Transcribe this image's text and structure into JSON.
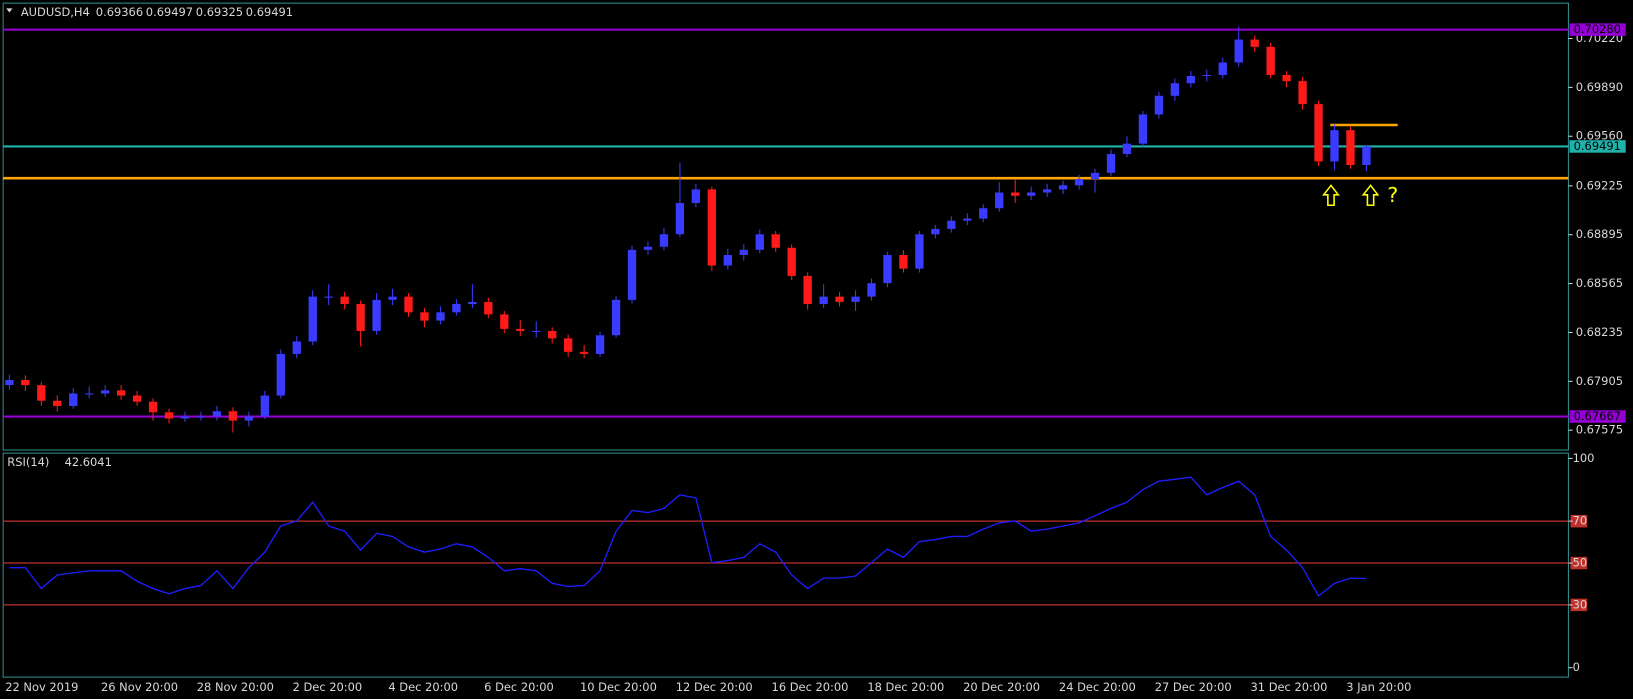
{
  "chart_data": [
    {
      "type": "candlestick",
      "title": "AUDUSD,H4",
      "header_values": [
        0.69366,
        0.69497,
        0.69325,
        0.69491
      ],
      "categories": [
        "22 Nov 2019",
        null,
        null,
        null,
        null,
        null,
        "26 Nov 20:00",
        null,
        null,
        null,
        null,
        null,
        "28 Nov 20:00",
        null,
        null,
        null,
        null,
        null,
        "2 Dec 20:00",
        null,
        null,
        null,
        null,
        null,
        "4 Dec 20:00",
        null,
        null,
        null,
        null,
        null,
        "6 Dec 20:00",
        null,
        null,
        null,
        null,
        null,
        "10 Dec 20:00",
        null,
        null,
        null,
        null,
        null,
        "12 Dec 20:00",
        null,
        null,
        null,
        null,
        null,
        "16 Dec 20:00",
        null,
        null,
        null,
        null,
        null,
        "18 Dec 20:00",
        null,
        null,
        null,
        null,
        null,
        "20 Dec 20:00",
        null,
        null,
        null,
        null,
        null,
        "24 Dec 20:00",
        null,
        null,
        null,
        null,
        null,
        "27 Dec 20:00",
        null,
        null,
        null,
        null,
        null,
        "31 Dec 20:00",
        null,
        null,
        null,
        null,
        null,
        "3 Jan 20:00",
        null
      ],
      "open": [
        0.6788,
        0.67914,
        0.67879,
        0.67774,
        0.67738,
        0.67823,
        0.67823,
        0.67844,
        0.67809,
        0.67767,
        0.67696,
        0.67654,
        0.67668,
        0.67668,
        0.67703,
        0.6764,
        0.67668,
        0.67809,
        0.6809,
        0.68174,
        0.68477,
        0.68477,
        0.68427,
        0.68245,
        0.68455,
        0.68477,
        0.68371,
        0.68315,
        0.68371,
        0.68427,
        0.68441,
        0.68357,
        0.68259,
        0.68245,
        0.68245,
        0.68195,
        0.68104,
        0.6809,
        0.68216,
        0.68455,
        0.68793,
        0.68814,
        0.68898,
        0.69109,
        0.69201,
        0.68687,
        0.68758,
        0.68793,
        0.68898,
        0.68807,
        0.68617,
        0.68427,
        0.68477,
        0.68441,
        0.68477,
        0.68568,
        0.68758,
        0.68666,
        0.68898,
        0.68934,
        0.6899,
        0.69004,
        0.69074,
        0.6918,
        0.69158,
        0.6918,
        0.69201,
        0.69229,
        0.69271,
        0.69313,
        0.6944,
        0.6951,
        0.69707,
        0.69833,
        0.69918,
        0.69967,
        0.69974,
        0.70058,
        0.70213,
        0.70164,
        0.69974,
        0.69932,
        0.69777,
        0.6939,
        0.69601,
        0.69366
      ],
      "high": [
        0.6795,
        0.67945,
        0.679,
        0.6781,
        0.6786,
        0.6787,
        0.6788,
        0.6788,
        0.6784,
        0.6779,
        0.6772,
        0.677,
        0.677,
        0.6774,
        0.6773,
        0.677,
        0.6784,
        0.6812,
        0.6821,
        0.6852,
        0.6856,
        0.6851,
        0.6845,
        0.685,
        0.6853,
        0.685,
        0.684,
        0.6841,
        0.6846,
        0.6856,
        0.6847,
        0.6838,
        0.6832,
        0.6831,
        0.6827,
        0.6822,
        0.6815,
        0.6824,
        0.6848,
        0.6882,
        0.6885,
        0.6894,
        0.6938,
        0.6924,
        0.6922,
        0.688,
        0.6883,
        0.6893,
        0.6892,
        0.6883,
        0.6864,
        0.6856,
        0.6851,
        0.6852,
        0.686,
        0.6878,
        0.6879,
        0.6892,
        0.6896,
        0.6902,
        0.6904,
        0.691,
        0.6925,
        0.6927,
        0.6922,
        0.6924,
        0.6926,
        0.693,
        0.6934,
        0.6947,
        0.6956,
        0.6973,
        0.6986,
        0.6995,
        0.7,
        0.7001,
        0.7009,
        0.703,
        0.7024,
        0.7019,
        0.7,
        0.6996,
        0.698,
        0.6964,
        0.6963,
        0.69497
      ],
      "low": [
        0.6785,
        0.6784,
        0.6774,
        0.677,
        0.6772,
        0.6779,
        0.678,
        0.6778,
        0.6774,
        0.6764,
        0.6762,
        0.6763,
        0.6764,
        0.6764,
        0.6756,
        0.676,
        0.6765,
        0.6779,
        0.6806,
        0.6815,
        0.6842,
        0.6839,
        0.6814,
        0.6822,
        0.6842,
        0.6834,
        0.6827,
        0.6829,
        0.6835,
        0.684,
        0.6833,
        0.6823,
        0.6821,
        0.682,
        0.6816,
        0.6807,
        0.6806,
        0.6807,
        0.682,
        0.6843,
        0.6876,
        0.6879,
        0.6888,
        0.6908,
        0.6865,
        0.6866,
        0.6872,
        0.6877,
        0.6878,
        0.6859,
        0.6839,
        0.684,
        0.6841,
        0.6838,
        0.6845,
        0.6854,
        0.6864,
        0.6864,
        0.6887,
        0.6891,
        0.6896,
        0.6898,
        0.6905,
        0.6911,
        0.6913,
        0.6915,
        0.6917,
        0.692,
        0.6918,
        0.6929,
        0.6942,
        0.6949,
        0.6968,
        0.698,
        0.6989,
        0.6993,
        0.6995,
        0.7003,
        0.7013,
        0.6995,
        0.6989,
        0.6974,
        0.6936,
        0.6933,
        0.6934,
        0.69325
      ],
      "close": [
        0.67914,
        0.67879,
        0.67774,
        0.67738,
        0.67823,
        0.67823,
        0.67844,
        0.67809,
        0.67767,
        0.67696,
        0.67654,
        0.67668,
        0.67668,
        0.67703,
        0.6764,
        0.67668,
        0.67809,
        0.6809,
        0.68174,
        0.68477,
        0.68477,
        0.68427,
        0.68245,
        0.68455,
        0.68477,
        0.68371,
        0.68315,
        0.68371,
        0.68427,
        0.68441,
        0.68357,
        0.68259,
        0.68245,
        0.68245,
        0.68195,
        0.68104,
        0.6809,
        0.68216,
        0.68455,
        0.68793,
        0.68814,
        0.68898,
        0.69109,
        0.69201,
        0.68687,
        0.68758,
        0.68793,
        0.68898,
        0.68807,
        0.68617,
        0.68427,
        0.68477,
        0.68441,
        0.68477,
        0.68568,
        0.68758,
        0.68666,
        0.68898,
        0.68934,
        0.6899,
        0.69004,
        0.69074,
        0.6918,
        0.69158,
        0.6918,
        0.69201,
        0.69229,
        0.69271,
        0.69313,
        0.6944,
        0.6951,
        0.69707,
        0.69833,
        0.69918,
        0.69967,
        0.69974,
        0.70058,
        0.70213,
        0.70164,
        0.69974,
        0.69932,
        0.69777,
        0.6939,
        0.69601,
        0.69366,
        0.69491
      ],
      "up_color": "#3b3bff",
      "down_color": "#ff1a1a",
      "ylim": [
        0.67441,
        0.70459
      ],
      "yticks": [
        {
          "value": 0.7022,
          "label": "0.70220"
        },
        {
          "value": 0.6989,
          "label": "0.69890"
        },
        {
          "value": 0.6956,
          "label": "0.69560"
        },
        0.69225,
        0.68895,
        0.68565,
        0.68235,
        0.67905,
        0.67575
      ],
      "hlines": [
        {
          "value": 0.7028,
          "label": "0.70280",
          "color": "#9400d3"
        },
        {
          "value": 0.69277,
          "color": "#ffa500"
        },
        {
          "value": 0.69491,
          "label": "0.69491",
          "color": "#20b2aa"
        },
        {
          "value": 0.67667,
          "label": "0.67667",
          "color": "#9400d3"
        },
        {
          "value": 0.69636,
          "color": "#ffa500",
          "from_index": 83
        }
      ],
      "annotation": "?"
    },
    {
      "type": "line",
      "title": "RSI(14)",
      "series": [
        {
          "name": "RSI(14)",
          "color": "#1e1eff",
          "values": [
            47.8,
            47.8,
            37.8,
            44.3,
            45.3,
            46.3,
            46.3,
            46.3,
            41.3,
            37.8,
            35.3,
            37.8,
            39.3,
            46.3,
            37.8,
            47.8,
            55.2,
            67.7,
            70.1,
            79.1,
            67.7,
            65.2,
            56.2,
            64.2,
            62.7,
            57.7,
            55.2,
            56.7,
            59.2,
            57.7,
            52.7,
            46.3,
            47.3,
            46.3,
            40.3,
            38.8,
            39.3,
            46.3,
            65.2,
            75.1,
            74.1,
            76.1,
            82.6,
            81.1,
            50.2,
            51.2,
            52.7,
            59.2,
            55.2,
            44.3,
            37.8,
            42.8,
            42.8,
            43.8,
            50.2,
            56.7,
            52.7,
            60.2,
            61.2,
            62.7,
            62.7,
            66.2,
            69.2,
            70.1,
            65.2,
            66.2,
            67.7,
            69.2,
            72.6,
            76.1,
            79.1,
            85.1,
            89.1,
            90.0,
            91.0,
            82.6,
            86.1,
            89.1,
            82.6,
            62.7,
            56.2,
            47.8,
            34.3,
            40.3,
            42.8,
            42.6041
          ]
        }
      ],
      "ylim": [
        -4.5,
        102
      ],
      "yticks": [
        100,
        70,
        50,
        30,
        0
      ],
      "levels": [
        70,
        50,
        30
      ],
      "level_color": "#c0302a"
    }
  ]
}
